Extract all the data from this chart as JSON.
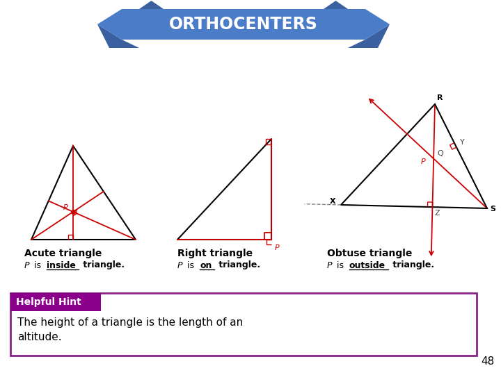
{
  "title": "ORTHOCENTERS",
  "title_text_color": "#FFFFFF",
  "bg_color": "#FFFFFF",
  "acute_label": "Acute triangle",
  "right_label": "Right triangle",
  "obtuse_label": "Obtuse triangle",
  "acute_sub_plain": " is ",
  "acute_sub_underline": "inside",
  "acute_sub_end": " triangle.",
  "right_sub_plain": " is ",
  "right_sub_underline": "on",
  "right_sub_end": " triangle.",
  "obtuse_sub_plain": " is ",
  "obtuse_sub_underline": "outside",
  "obtuse_sub_end": " triangle.",
  "hint_label": "Helpful Hint",
  "hint_bg": "#8B008B",
  "hint_border": "#882288",
  "hint_text": "The height of a triangle is the length of an\naltitude.",
  "page_num": "48",
  "triangle_color": "#000000",
  "altitude_color": "#CC0000",
  "ribbon_color": "#4A7CC7",
  "ribbon_dark": "#3A60A0"
}
